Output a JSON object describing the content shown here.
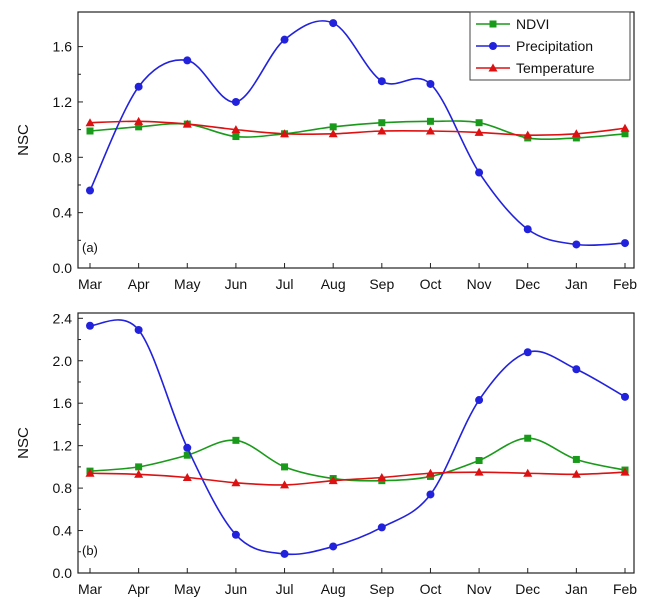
{
  "chart_data": [
    {
      "type": "line",
      "panel_label": "(a)",
      "categories": [
        "Mar",
        "Apr",
        "May",
        "Jun",
        "Jul",
        "Aug",
        "Sep",
        "Oct",
        "Nov",
        "Dec",
        "Jan",
        "Feb"
      ],
      "ylabel": "NSC",
      "xlabel": "",
      "ylim": [
        0,
        1.85
      ],
      "yticks": [
        "0.0",
        "0.4",
        "0.8",
        "1.2",
        "1.6"
      ],
      "legend": {
        "show": true,
        "position": "top-right"
      },
      "series": [
        {
          "name": "NDVI",
          "color": "#1a9a1a",
          "marker": "square",
          "values": [
            0.99,
            1.02,
            1.04,
            0.95,
            0.97,
            1.02,
            1.05,
            1.06,
            1.05,
            0.94,
            0.94,
            0.97
          ]
        },
        {
          "name": "Precipitation",
          "color": "#2222dd",
          "marker": "circle",
          "values": [
            0.56,
            1.31,
            1.5,
            1.2,
            1.65,
            1.77,
            1.35,
            1.33,
            0.69,
            0.28,
            0.17,
            0.18
          ]
        },
        {
          "name": "Temperature",
          "color": "#dd1111",
          "marker": "triangle",
          "values": [
            1.05,
            1.06,
            1.04,
            1.0,
            0.97,
            0.97,
            0.99,
            0.99,
            0.98,
            0.96,
            0.97,
            1.01
          ]
        }
      ]
    },
    {
      "type": "line",
      "panel_label": "(b)",
      "categories": [
        "Mar",
        "Apr",
        "May",
        "Jun",
        "Jul",
        "Aug",
        "Sep",
        "Oct",
        "Nov",
        "Dec",
        "Jan",
        "Feb"
      ],
      "ylabel": "NSC",
      "xlabel": "",
      "ylim": [
        0,
        2.45
      ],
      "yticks": [
        "0.0",
        "0.4",
        "0.8",
        "1.2",
        "1.6",
        "2.0",
        "2.4"
      ],
      "legend": {
        "show": false
      },
      "series": [
        {
          "name": "NDVI",
          "color": "#1a9a1a",
          "marker": "square",
          "values": [
            0.96,
            1.0,
            1.11,
            1.25,
            1.0,
            0.89,
            0.87,
            0.91,
            1.06,
            1.27,
            1.07,
            0.97
          ]
        },
        {
          "name": "Precipitation",
          "color": "#2222dd",
          "marker": "circle",
          "values": [
            2.33,
            2.29,
            1.18,
            0.36,
            0.18,
            0.25,
            0.43,
            0.74,
            1.63,
            2.08,
            1.92,
            1.66
          ]
        },
        {
          "name": "Temperature",
          "color": "#dd1111",
          "marker": "triangle",
          "values": [
            0.94,
            0.93,
            0.9,
            0.85,
            0.83,
            0.87,
            0.9,
            0.94,
            0.95,
            0.94,
            0.93,
            0.95
          ]
        }
      ]
    }
  ]
}
